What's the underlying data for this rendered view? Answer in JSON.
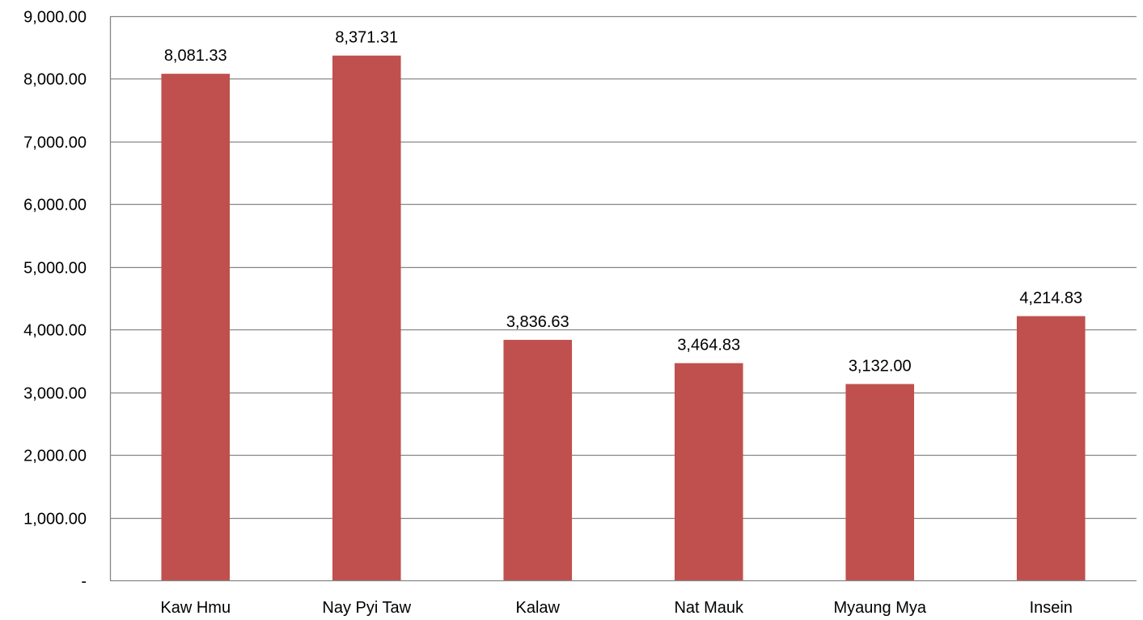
{
  "chart_data": {
    "type": "bar",
    "title": "",
    "xlabel": "",
    "ylabel": "",
    "categories": [
      "Kaw Hmu",
      "Nay Pyi Taw",
      "Kalaw",
      "Nat Mauk",
      "Myaung Mya",
      "Insein"
    ],
    "values": [
      8081.33,
      8371.31,
      3836.63,
      3464.83,
      3132.0,
      4214.83
    ],
    "data_labels": [
      "8,081.33",
      "8,371.31",
      "3,836.63",
      "3,464.83",
      "3,132.00",
      "4,214.83"
    ],
    "ylim": [
      0,
      9000
    ],
    "y_ticks": [
      0,
      1000,
      2000,
      3000,
      4000,
      5000,
      6000,
      7000,
      8000,
      9000
    ],
    "y_tick_labels": [
      "-",
      "1,000.00",
      "2,000.00",
      "3,000.00",
      "4,000.00",
      "5,000.00",
      "6,000.00",
      "7,000.00",
      "8,000.00",
      "9,000.00"
    ],
    "grid": true,
    "legend": "none",
    "bar_color": "#c0504d",
    "grid_color": "#868686",
    "axis_color": "#868686"
  }
}
